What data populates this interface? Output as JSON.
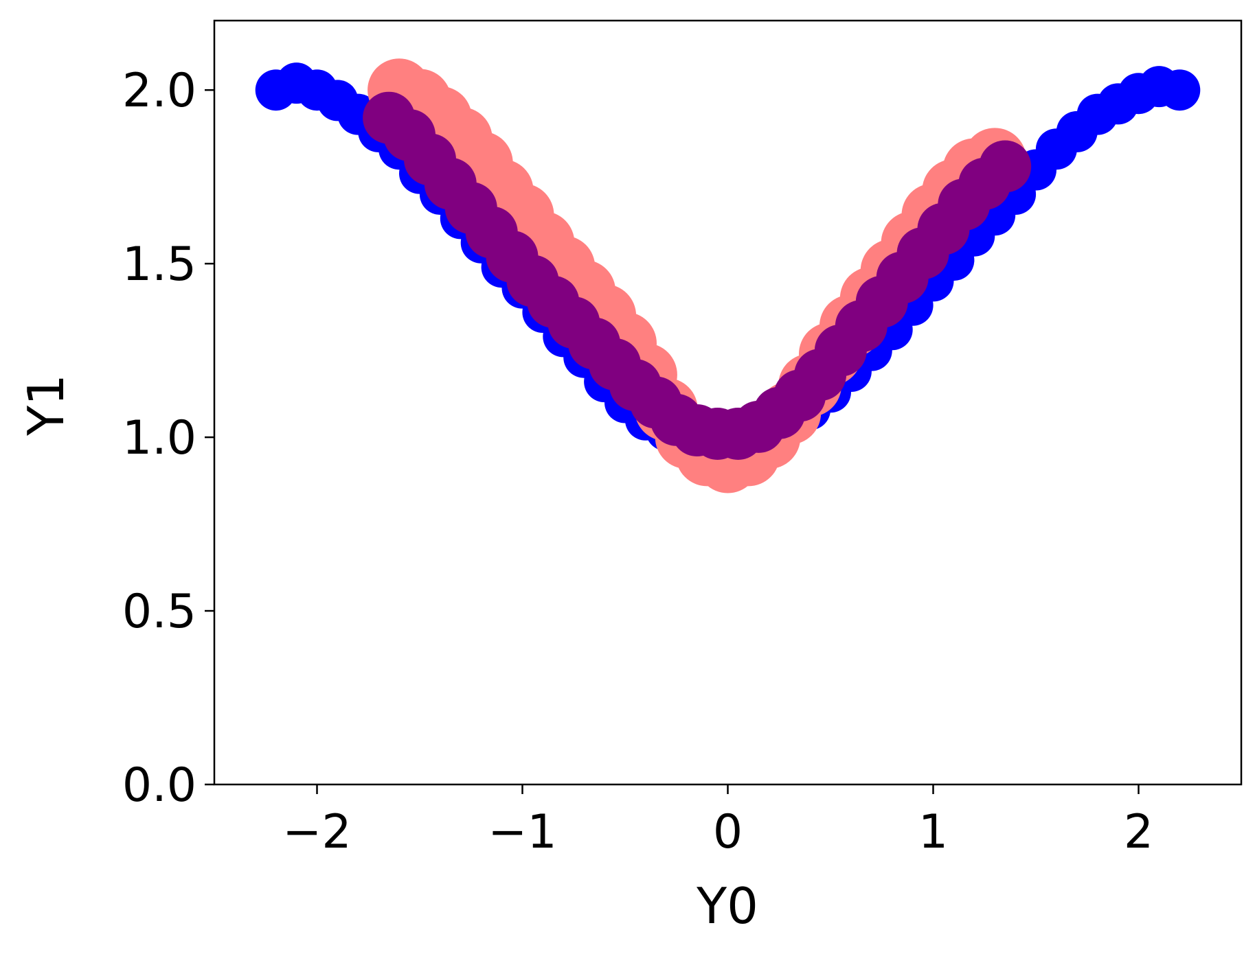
{
  "chart_data": {
    "type": "scatter",
    "title": "",
    "xlabel": "Y0",
    "ylabel": "Y1",
    "xlim": [
      -2.5,
      2.5
    ],
    "ylim": [
      0.0,
      2.2
    ],
    "grid": false,
    "x_ticks": [
      -2,
      -1,
      0,
      1,
      2
    ],
    "x_tick_labels": [
      "−2",
      "−1",
      "0",
      "1",
      "2"
    ],
    "y_ticks": [
      0.0,
      0.5,
      1.0,
      1.5,
      2.0
    ],
    "y_tick_labels": [
      "0.0",
      "0.5",
      "1.0",
      "1.5",
      "2.0"
    ],
    "series": [
      {
        "color": "#0000ff",
        "marker_size": 2,
        "x": [
          -2.2,
          -2.1,
          -2.0,
          -1.9,
          -1.8,
          -1.7,
          -1.6,
          -1.5,
          -1.4,
          -1.3,
          -1.2,
          -1.1,
          -1.0,
          -0.9,
          -0.8,
          -0.7,
          -0.6,
          -0.5,
          -0.4,
          -0.3,
          -0.2,
          -0.1,
          0.0,
          0.1,
          0.2,
          0.3,
          0.4,
          0.5,
          0.6,
          0.7,
          0.8,
          0.9,
          1.0,
          1.1,
          1.2,
          1.3,
          1.4,
          1.5,
          1.6,
          1.7,
          1.8,
          1.9,
          2.0,
          2.1,
          2.2
        ],
        "y": [
          2.0,
          2.02,
          2.0,
          1.97,
          1.93,
          1.88,
          1.83,
          1.76,
          1.7,
          1.63,
          1.56,
          1.49,
          1.43,
          1.36,
          1.29,
          1.23,
          1.16,
          1.1,
          1.05,
          1.02,
          1.0,
          1.0,
          1.0,
          1.0,
          1.01,
          1.04,
          1.08,
          1.13,
          1.19,
          1.25,
          1.31,
          1.38,
          1.45,
          1.51,
          1.58,
          1.64,
          1.7,
          1.77,
          1.83,
          1.88,
          1.93,
          1.96,
          1.99,
          2.01,
          2.0
        ]
      },
      {
        "color": "#ff8080",
        "marker_size": 4,
        "x": [
          -1.6,
          -1.5,
          -1.4,
          -1.3,
          -1.2,
          -1.1,
          -1.0,
          -0.9,
          -0.8,
          -0.7,
          -0.6,
          -0.5,
          -0.4,
          -0.3,
          -0.2,
          -0.1,
          0.0,
          0.1,
          0.2,
          0.3,
          0.4,
          0.5,
          0.6,
          0.7,
          0.8,
          0.9,
          1.0,
          1.1,
          1.2,
          1.3
        ],
        "y": [
          2.0,
          1.97,
          1.92,
          1.86,
          1.79,
          1.71,
          1.64,
          1.56,
          1.49,
          1.42,
          1.35,
          1.27,
          1.18,
          1.08,
          1.0,
          0.95,
          0.93,
          0.95,
          1.0,
          1.07,
          1.15,
          1.24,
          1.32,
          1.4,
          1.48,
          1.56,
          1.64,
          1.71,
          1.77,
          1.8
        ]
      },
      {
        "color": "#800080",
        "marker_size": 3,
        "x": [
          -1.65,
          -1.55,
          -1.45,
          -1.35,
          -1.25,
          -1.15,
          -1.05,
          -0.95,
          -0.85,
          -0.75,
          -0.65,
          -0.55,
          -0.45,
          -0.35,
          -0.25,
          -0.15,
          -0.05,
          0.05,
          0.15,
          0.25,
          0.35,
          0.45,
          0.55,
          0.65,
          0.75,
          0.85,
          0.95,
          1.05,
          1.15,
          1.25,
          1.35
        ],
        "y": [
          1.92,
          1.87,
          1.8,
          1.73,
          1.66,
          1.59,
          1.52,
          1.45,
          1.39,
          1.33,
          1.27,
          1.21,
          1.15,
          1.1,
          1.05,
          1.02,
          1.01,
          1.01,
          1.03,
          1.07,
          1.12,
          1.18,
          1.25,
          1.32,
          1.39,
          1.46,
          1.53,
          1.6,
          1.67,
          1.73,
          1.78
        ]
      }
    ]
  }
}
